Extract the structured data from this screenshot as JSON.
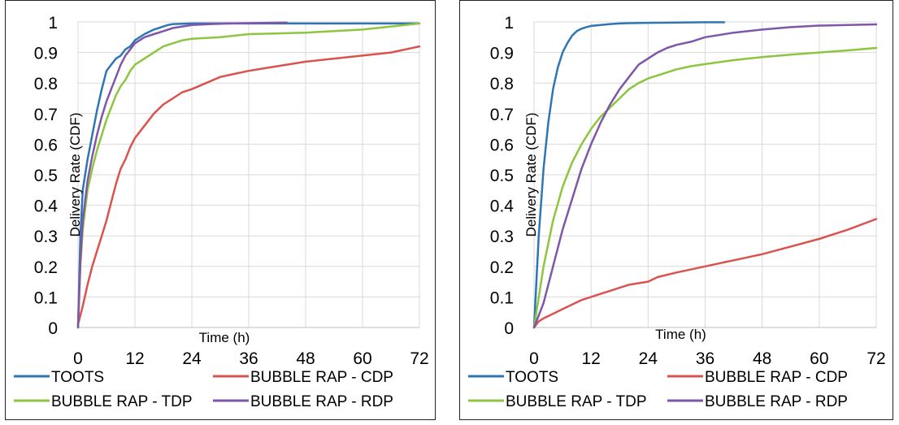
{
  "colors": {
    "toots": "#2e75b6",
    "cdp": "#d9534f",
    "tdp": "#8cc63f",
    "rdp": "#7e57a8",
    "grid": "#d9d9d9"
  },
  "chart_data": [
    {
      "type": "line",
      "xlabel": "Time (h)",
      "ylabel": "Delivery Rate (CDF)",
      "xlim": [
        0,
        72
      ],
      "ylim": [
        0,
        1
      ],
      "xticks": [
        "0",
        "12",
        "24",
        "36",
        "48",
        "60",
        "72"
      ],
      "yticks": [
        "0",
        "0.1",
        "0.2",
        "0.3",
        "0.4",
        "0.5",
        "0.6",
        "0.7",
        "0.8",
        "0.9",
        "1"
      ],
      "grid": true,
      "legend_position": "bottom",
      "series": [
        {
          "name": "TOOTS",
          "color": "#2e75b6",
          "x": [
            0,
            0.5,
            1,
            2,
            3,
            4,
            5,
            6,
            7,
            8,
            9,
            10,
            11,
            12,
            14,
            16,
            18,
            19,
            20,
            24,
            30,
            36,
            48,
            60,
            72
          ],
          "y": [
            0,
            0.3,
            0.45,
            0.55,
            0.63,
            0.71,
            0.78,
            0.84,
            0.86,
            0.88,
            0.89,
            0.91,
            0.92,
            0.94,
            0.96,
            0.975,
            0.985,
            0.99,
            0.993,
            0.995,
            0.995,
            0.995,
            0.995,
            0.995,
            0.995
          ]
        },
        {
          "name": "BUBBLE RAP - CDP",
          "color": "#d9534f",
          "x": [
            0,
            1,
            2,
            3,
            4,
            5,
            6,
            7,
            8,
            9,
            10,
            11,
            12,
            14,
            16,
            18,
            20,
            22,
            24,
            27,
            30,
            33,
            36,
            40,
            44,
            48,
            54,
            60,
            66,
            72
          ],
          "y": [
            0.01,
            0.07,
            0.14,
            0.2,
            0.25,
            0.3,
            0.35,
            0.41,
            0.47,
            0.52,
            0.55,
            0.59,
            0.62,
            0.66,
            0.7,
            0.73,
            0.75,
            0.77,
            0.78,
            0.8,
            0.82,
            0.83,
            0.84,
            0.85,
            0.86,
            0.87,
            0.88,
            0.89,
            0.9,
            0.92
          ]
        },
        {
          "name": "BUBBLE RAP - TDP",
          "color": "#8cc63f",
          "x": [
            0,
            0.5,
            1,
            2,
            3,
            4,
            5,
            6,
            7,
            8,
            9,
            10,
            11,
            12,
            14,
            16,
            18,
            20,
            22,
            24,
            30,
            36,
            48,
            60,
            66,
            72
          ],
          "y": [
            0,
            0.2,
            0.32,
            0.45,
            0.52,
            0.58,
            0.63,
            0.68,
            0.72,
            0.76,
            0.79,
            0.81,
            0.84,
            0.86,
            0.88,
            0.9,
            0.92,
            0.93,
            0.94,
            0.945,
            0.95,
            0.96,
            0.965,
            0.975,
            0.985,
            0.995
          ]
        },
        {
          "name": "BUBBLE RAP - RDP",
          "color": "#7e57a8",
          "x": [
            0,
            0.5,
            1,
            2,
            3,
            4,
            5,
            6,
            7,
            8,
            9,
            10,
            11,
            12,
            14,
            16,
            18,
            20,
            22,
            24,
            28,
            32,
            36,
            40,
            44
          ],
          "y": [
            0,
            0.22,
            0.35,
            0.48,
            0.56,
            0.63,
            0.69,
            0.74,
            0.78,
            0.82,
            0.86,
            0.89,
            0.91,
            0.93,
            0.95,
            0.96,
            0.97,
            0.98,
            0.985,
            0.99,
            0.993,
            0.995,
            0.996,
            0.997,
            0.998
          ]
        }
      ]
    },
    {
      "type": "line",
      "xlabel": "Time (h)",
      "ylabel": "Delivery Rate (CDF)",
      "xlim": [
        0,
        72
      ],
      "ylim": [
        0,
        1
      ],
      "xticks": [
        "0",
        "12",
        "24",
        "36",
        "48",
        "60",
        "72"
      ],
      "yticks": [
        "0",
        "0.1",
        "0.2",
        "0.3",
        "0.4",
        "0.5",
        "0.6",
        "0.7",
        "0.8",
        "0.9",
        "1"
      ],
      "grid": true,
      "legend_position": "bottom",
      "series": [
        {
          "name": "TOOTS",
          "color": "#2e75b6",
          "x": [
            0,
            1,
            2,
            3,
            4,
            5,
            6,
            7,
            8,
            9,
            10,
            11,
            12,
            14,
            16,
            18,
            20,
            24,
            30,
            36,
            40
          ],
          "y": [
            0,
            0.3,
            0.52,
            0.67,
            0.78,
            0.85,
            0.9,
            0.93,
            0.955,
            0.97,
            0.978,
            0.983,
            0.987,
            0.99,
            0.993,
            0.995,
            0.996,
            0.997,
            0.998,
            0.999,
            0.999
          ]
        },
        {
          "name": "BUBBLE RAP - CDP",
          "color": "#d9534f",
          "x": [
            0,
            1,
            2,
            4,
            6,
            8,
            10,
            12,
            14,
            16,
            18,
            20,
            22,
            24,
            26,
            30,
            36,
            42,
            48,
            54,
            60,
            66,
            72
          ],
          "y": [
            0,
            0.02,
            0.03,
            0.045,
            0.06,
            0.075,
            0.09,
            0.1,
            0.11,
            0.12,
            0.13,
            0.14,
            0.145,
            0.15,
            0.165,
            0.18,
            0.2,
            0.22,
            0.24,
            0.265,
            0.29,
            0.32,
            0.355
          ]
        },
        {
          "name": "BUBBLE RAP - TDP",
          "color": "#8cc63f",
          "x": [
            0,
            2,
            4,
            6,
            8,
            10,
            12,
            14,
            16,
            18,
            20,
            22,
            24,
            27,
            30,
            33,
            36,
            42,
            48,
            54,
            60,
            66,
            72
          ],
          "y": [
            0,
            0.2,
            0.35,
            0.46,
            0.54,
            0.6,
            0.65,
            0.69,
            0.72,
            0.75,
            0.78,
            0.8,
            0.815,
            0.83,
            0.845,
            0.855,
            0.862,
            0.875,
            0.885,
            0.893,
            0.9,
            0.907,
            0.915
          ]
        },
        {
          "name": "BUBBLE RAP - RDP",
          "color": "#7e57a8",
          "x": [
            0,
            2,
            4,
            6,
            8,
            10,
            12,
            14,
            16,
            18,
            20,
            22,
            24,
            26,
            28,
            30,
            33,
            36,
            42,
            48,
            54,
            60,
            66,
            72
          ],
          "y": [
            0,
            0.08,
            0.2,
            0.32,
            0.42,
            0.52,
            0.6,
            0.67,
            0.73,
            0.78,
            0.82,
            0.86,
            0.88,
            0.9,
            0.915,
            0.925,
            0.935,
            0.95,
            0.965,
            0.975,
            0.983,
            0.988,
            0.99,
            0.992
          ]
        }
      ]
    }
  ]
}
